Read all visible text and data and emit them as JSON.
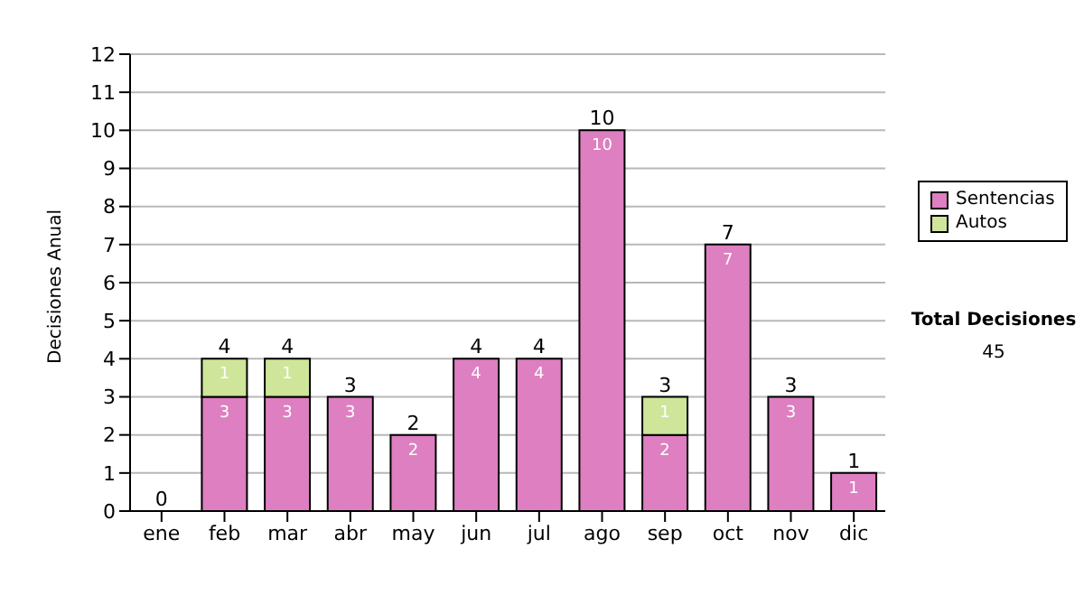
{
  "chart_data": {
    "type": "bar",
    "ylabel": "Decisiones Anual",
    "categories": [
      "ene",
      "feb",
      "mar",
      "abr",
      "may",
      "jun",
      "jul",
      "ago",
      "sep",
      "oct",
      "nov",
      "dic"
    ],
    "series": [
      {
        "name": "Sentencias",
        "color": "#dd7fc0",
        "values": [
          0,
          3,
          3,
          3,
          2,
          4,
          4,
          10,
          2,
          7,
          3,
          1
        ],
        "value_labels": [
          null,
          "3",
          "3",
          "3",
          "2",
          "4",
          "4",
          "10",
          "2",
          "7",
          "3",
          "1"
        ]
      },
      {
        "name": "Autos",
        "color": "#cfe59a",
        "values": [
          0,
          1,
          1,
          0,
          0,
          0,
          0,
          0,
          1,
          0,
          0,
          0
        ],
        "value_labels": [
          null,
          "1",
          "1",
          null,
          null,
          null,
          null,
          null,
          "1",
          null,
          null,
          null
        ]
      }
    ],
    "stacked": true,
    "totals": [
      "0",
      "4",
      "4",
      "3",
      "2",
      "4",
      "4",
      "10",
      "3",
      "7",
      "3",
      "1"
    ],
    "ylim": [
      0,
      12
    ],
    "yticks": [
      0,
      1,
      2,
      3,
      4,
      5,
      6,
      7,
      8,
      9,
      10,
      11,
      12
    ],
    "grid": "y",
    "legend": "right",
    "annotations": [
      "Total Decisiones",
      "45"
    ]
  }
}
